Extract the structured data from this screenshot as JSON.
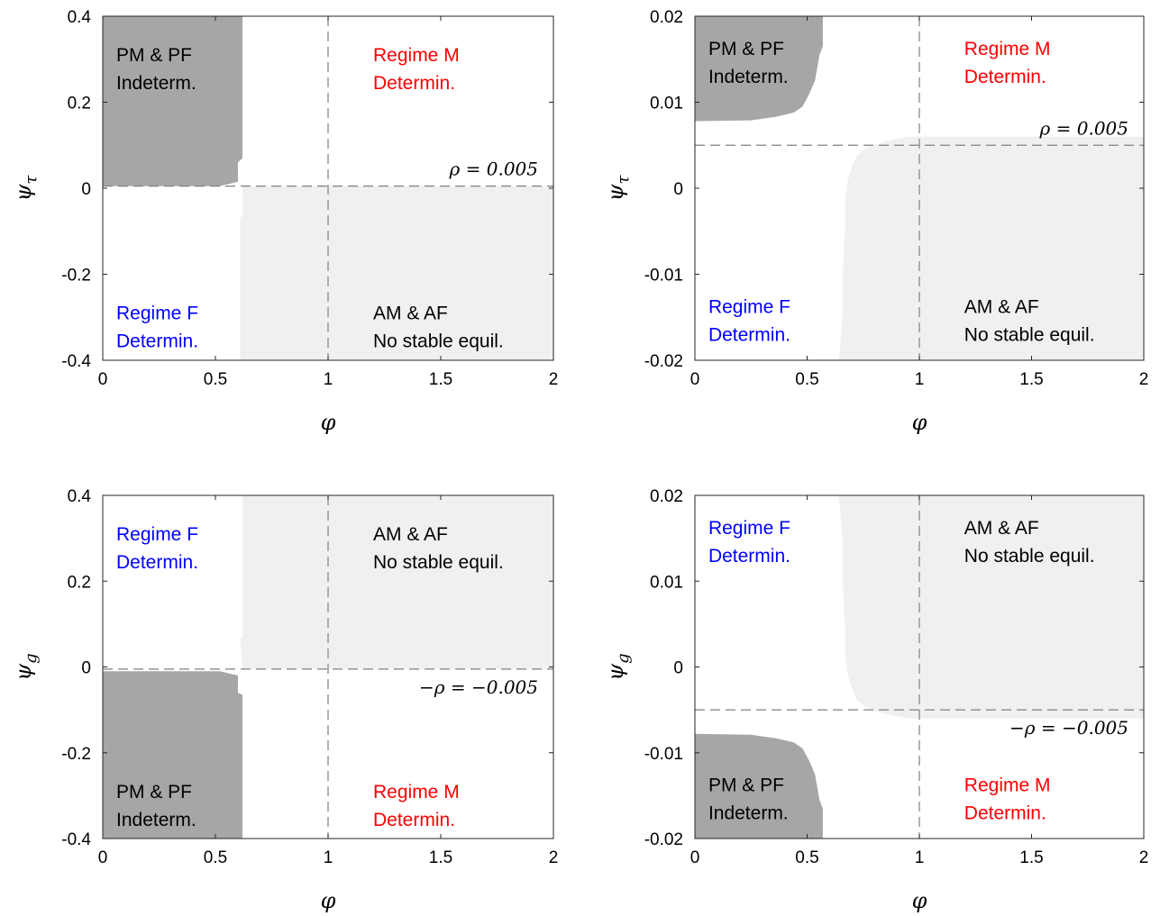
{
  "colors": {
    "pm_pf_region": "#a6a6a6",
    "am_af_region": "#f0f0f0",
    "regime_m": "#ff0000",
    "regime_f": "#0000ff",
    "text": "#000000",
    "guide": "#808080"
  },
  "chart_data": [
    {
      "type": "heatmap",
      "xlabel": "φ",
      "ylabel": "ψ",
      "ylabel_sub": "τ",
      "xlim": [
        0,
        2
      ],
      "ylim": [
        -0.4,
        0.4
      ],
      "xticks": [
        "0",
        "0.5",
        "1",
        "1.5",
        "2"
      ],
      "yticks": [
        "-0.4",
        "-0.2",
        "0",
        "0.2",
        "0.4"
      ],
      "guide_x": 1,
      "guide_y": 0.005,
      "guide_label": "ρ = 0.005",
      "guide_label_side": "above",
      "regions": [
        {
          "name": "pm-pf",
          "color": "#a6a6a6",
          "points": [
            [
              0,
              0.4
            ],
            [
              0.62,
              0.4
            ],
            [
              0.62,
              0.07
            ],
            [
              0.6,
              0.06
            ],
            [
              0.6,
              0.015
            ],
            [
              0.52,
              0.005
            ],
            [
              0,
              0.005
            ]
          ]
        },
        {
          "name": "am-af",
          "color": "#f0f0f0",
          "points": [
            [
              0.62,
              0.005
            ],
            [
              2,
              0.005
            ],
            [
              2,
              -0.4
            ],
            [
              0.61,
              -0.4
            ],
            [
              0.61,
              -0.07
            ],
            [
              0.62,
              -0.065
            ]
          ]
        }
      ],
      "labels": [
        {
          "id": "pm-pf",
          "lines": [
            "PM & PF",
            "Indeterm."
          ],
          "color": "#000000",
          "x": 0.06,
          "y": 0.295
        },
        {
          "id": "regime-m",
          "lines": [
            "Regime M",
            "Determin."
          ],
          "color": "#ff0000",
          "x": 1.2,
          "y": 0.295
        },
        {
          "id": "regime-f",
          "lines": [
            "Regime F",
            "Determin."
          ],
          "color": "#0000ff",
          "x": 0.06,
          "y": -0.305
        },
        {
          "id": "am-af",
          "lines": [
            "AM & AF",
            "No stable equil."
          ],
          "color": "#000000",
          "x": 1.2,
          "y": -0.305
        }
      ]
    },
    {
      "type": "heatmap",
      "xlabel": "φ",
      "ylabel": "ψ",
      "ylabel_sub": "τ",
      "xlim": [
        0,
        2
      ],
      "ylim": [
        -0.02,
        0.02
      ],
      "xticks": [
        "0",
        "0.5",
        "1",
        "1.5",
        "2"
      ],
      "yticks": [
        "-0.02",
        "-0.01",
        "0",
        "0.01",
        "0.02"
      ],
      "guide_x": 1,
      "guide_y": 0.005,
      "guide_label": "ρ = 0.005",
      "guide_label_side": "above",
      "regions": [
        {
          "name": "pm-pf",
          "color": "#a6a6a6",
          "points": [
            [
              0,
              0.02
            ],
            [
              0.57,
              0.02
            ],
            [
              0.57,
              0.0165
            ],
            [
              0.555,
              0.0155
            ],
            [
              0.535,
              0.0125
            ],
            [
              0.51,
              0.011
            ],
            [
              0.48,
              0.0095
            ],
            [
              0.44,
              0.0088
            ],
            [
              0.36,
              0.0083
            ],
            [
              0.25,
              0.0079
            ],
            [
              0,
              0.0078
            ]
          ]
        },
        {
          "name": "am-af",
          "color": "#f0f0f0",
          "points": [
            [
              2,
              0.006
            ],
            [
              0.95,
              0.006
            ],
            [
              0.85,
              0.0055
            ],
            [
              0.77,
              0.0048
            ],
            [
              0.72,
              0.0038
            ],
            [
              0.7,
              0.0025
            ],
            [
              0.68,
              0.0008
            ],
            [
              0.67,
              -0.0012
            ],
            [
              0.67,
              -0.004
            ],
            [
              0.66,
              -0.0095
            ],
            [
              0.66,
              -0.0135
            ],
            [
              0.65,
              -0.0175
            ],
            [
              0.64,
              -0.02
            ],
            [
              2,
              -0.02
            ]
          ]
        }
      ],
      "labels": [
        {
          "id": "pm-pf",
          "lines": [
            "PM & PF",
            "Indeterm."
          ],
          "color": "#000000",
          "x": 0.06,
          "y": 0.0155
        },
        {
          "id": "regime-m",
          "lines": [
            "Regime M",
            "Determin."
          ],
          "color": "#ff0000",
          "x": 1.2,
          "y": 0.0155
        },
        {
          "id": "regime-f",
          "lines": [
            "Regime F",
            "Determin."
          ],
          "color": "#0000ff",
          "x": 0.06,
          "y": -0.0145
        },
        {
          "id": "am-af",
          "lines": [
            "AM & AF",
            "No stable equil."
          ],
          "color": "#000000",
          "x": 1.2,
          "y": -0.0145
        }
      ]
    },
    {
      "type": "heatmap",
      "xlabel": "φ",
      "ylabel": "ψ",
      "ylabel_sub": "g",
      "xlim": [
        0,
        2
      ],
      "ylim": [
        -0.4,
        0.4
      ],
      "xticks": [
        "0",
        "0.5",
        "1",
        "1.5",
        "2"
      ],
      "yticks": [
        "-0.4",
        "-0.2",
        "0",
        "0.2",
        "0.4"
      ],
      "guide_x": 1,
      "guide_y": -0.005,
      "guide_label": "−ρ = −0.005",
      "guide_label_side": "below",
      "regions": [
        {
          "name": "pm-pf",
          "color": "#a6a6a6",
          "points": [
            [
              0,
              -0.4
            ],
            [
              0.62,
              -0.4
            ],
            [
              0.62,
              -0.065
            ],
            [
              0.6,
              -0.06
            ],
            [
              0.6,
              -0.02
            ],
            [
              0.52,
              -0.01
            ],
            [
              0,
              -0.01
            ]
          ]
        },
        {
          "name": "am-af",
          "color": "#f0f0f0",
          "points": [
            [
              0.62,
              -0.005
            ],
            [
              2,
              -0.005
            ],
            [
              2,
              0.4
            ],
            [
              0.62,
              0.4
            ],
            [
              0.62,
              0.07
            ],
            [
              0.61,
              0.065
            ]
          ]
        }
      ],
      "labels": [
        {
          "id": "regime-f",
          "lines": [
            "Regime F",
            "Determin."
          ],
          "color": "#0000ff",
          "x": 0.06,
          "y": 0.295
        },
        {
          "id": "am-af",
          "lines": [
            "AM & AF",
            "No stable equil."
          ],
          "color": "#000000",
          "x": 1.2,
          "y": 0.295
        },
        {
          "id": "pm-pf",
          "lines": [
            "PM & PF",
            "Indeterm."
          ],
          "color": "#000000",
          "x": 0.06,
          "y": -0.305
        },
        {
          "id": "regime-m",
          "lines": [
            "Regime M",
            "Determin."
          ],
          "color": "#ff0000",
          "x": 1.2,
          "y": -0.305
        }
      ]
    },
    {
      "type": "heatmap",
      "xlabel": "φ",
      "ylabel": "ψ",
      "ylabel_sub": "g",
      "xlim": [
        0,
        2
      ],
      "ylim": [
        -0.02,
        0.02
      ],
      "xticks": [
        "0",
        "0.5",
        "1",
        "1.5",
        "2"
      ],
      "yticks": [
        "-0.02",
        "-0.01",
        "0",
        "0.01",
        "0.02"
      ],
      "guide_x": 1,
      "guide_y": -0.005,
      "guide_label": "−ρ = −0.005",
      "guide_label_side": "below",
      "regions": [
        {
          "name": "pm-pf",
          "color": "#a6a6a6",
          "points": [
            [
              0,
              -0.02
            ],
            [
              0.57,
              -0.02
            ],
            [
              0.57,
              -0.0165
            ],
            [
              0.555,
              -0.0155
            ],
            [
              0.535,
              -0.0125
            ],
            [
              0.51,
              -0.011
            ],
            [
              0.48,
              -0.0095
            ],
            [
              0.44,
              -0.0088
            ],
            [
              0.36,
              -0.0083
            ],
            [
              0.25,
              -0.0079
            ],
            [
              0,
              -0.0078
            ]
          ]
        },
        {
          "name": "am-af",
          "color": "#f0f0f0",
          "points": [
            [
              2,
              -0.006
            ],
            [
              0.95,
              -0.006
            ],
            [
              0.85,
              -0.0055
            ],
            [
              0.77,
              -0.0048
            ],
            [
              0.72,
              -0.0038
            ],
            [
              0.7,
              -0.0025
            ],
            [
              0.68,
              -0.0008
            ],
            [
              0.67,
              0.0012
            ],
            [
              0.67,
              0.004
            ],
            [
              0.66,
              0.0095
            ],
            [
              0.66,
              0.0135
            ],
            [
              0.65,
              0.0175
            ],
            [
              0.64,
              0.02
            ],
            [
              2,
              0.02
            ]
          ]
        }
      ],
      "labels": [
        {
          "id": "regime-f",
          "lines": [
            "Regime F",
            "Determin."
          ],
          "color": "#0000ff",
          "x": 0.06,
          "y": 0.0155
        },
        {
          "id": "am-af",
          "lines": [
            "AM & AF",
            "No stable equil."
          ],
          "color": "#000000",
          "x": 1.2,
          "y": 0.0155
        },
        {
          "id": "pm-pf",
          "lines": [
            "PM & PF",
            "Indeterm."
          ],
          "color": "#000000",
          "x": 0.06,
          "y": -0.0145
        },
        {
          "id": "regime-m",
          "lines": [
            "Regime M",
            "Determin."
          ],
          "color": "#ff0000",
          "x": 1.2,
          "y": -0.0145
        }
      ]
    }
  ]
}
